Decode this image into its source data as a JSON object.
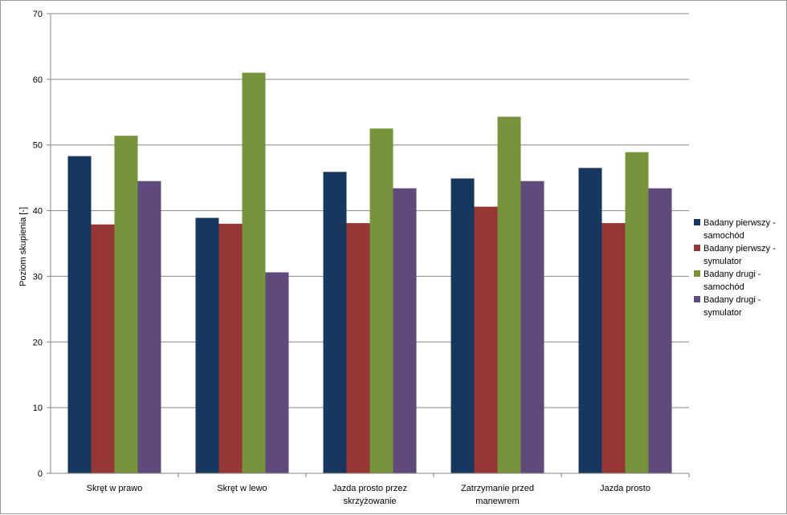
{
  "chart_data": {
    "type": "bar",
    "title": "",
    "xlabel": "",
    "ylabel": "Poziom skupienia [-]",
    "ylim": [
      0,
      70
    ],
    "yticks": [
      0,
      10,
      20,
      30,
      40,
      50,
      60,
      70
    ],
    "grid": true,
    "legend_position": "right",
    "categories": [
      [
        "Skręt w prawo"
      ],
      [
        "Skręt w lewo"
      ],
      [
        "Jazda prosto przez",
        "skrzyżowanie"
      ],
      [
        "Zatrzymanie  przed",
        "manewrem"
      ],
      [
        "Jazda prosto"
      ]
    ],
    "series": [
      {
        "name": [
          "Badany pierwszy -",
          "samochód"
        ],
        "color": "#17375e",
        "values": [
          48.3,
          38.9,
          45.9,
          44.9,
          46.5
        ]
      },
      {
        "name": [
          "Badany pierwszy -",
          "symulator"
        ],
        "color": "#953735",
        "values": [
          37.9,
          38.0,
          38.1,
          40.6,
          38.1
        ]
      },
      {
        "name": [
          "Badany drugi -",
          "samochód"
        ],
        "color": "#77933c",
        "values": [
          51.4,
          61.0,
          52.5,
          54.3,
          48.9
        ]
      },
      {
        "name": [
          "Badany drugi -",
          "symulator"
        ],
        "color": "#604a7b",
        "values": [
          44.5,
          30.6,
          43.4,
          44.5,
          43.4
        ]
      }
    ]
  }
}
